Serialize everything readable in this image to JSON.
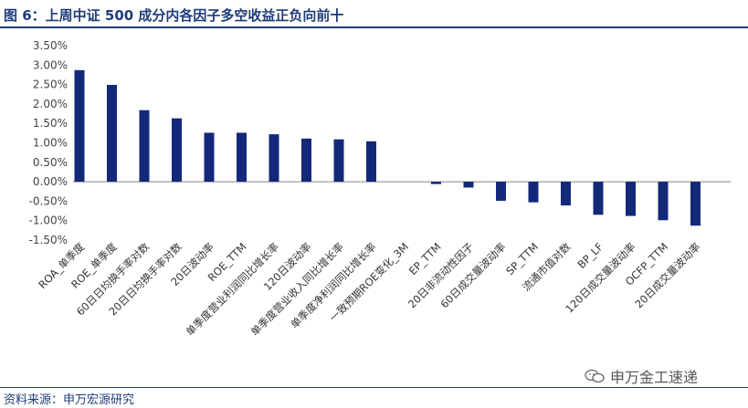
{
  "header": {
    "title": "图 6：上周中证 500 成分内各因子多空收益正负向前十"
  },
  "footer": {
    "source": "资料来源：申万宏源研究",
    "watermark": "申万金工速递"
  },
  "colors": {
    "bar": "#14287a",
    "title": "#1f3c7a",
    "axis": "#888888"
  },
  "chart_data": {
    "type": "bar",
    "categories": [
      "ROA_单季度",
      "ROE_单季度",
      "60日日均换手率对数",
      "20日日均换手率对数",
      "20日波动率",
      "ROE_TTM",
      "单季度营业利润同比增长率",
      "120日波动率",
      "单季度营业收入同比增长率",
      "单季度净利润同比增长率",
      "一致预期ROE变化_3M",
      "EP_TTM",
      "20日非流动性因子",
      "60日成交量波动率",
      "SP_TTM",
      "流通市值对数",
      "BP_LF",
      "120日成交量波动率",
      "OCFP_TTM",
      "20日成交量波动率"
    ],
    "values": [
      2.87,
      2.49,
      1.84,
      1.63,
      1.26,
      1.26,
      1.22,
      1.11,
      1.09,
      1.04,
      0.0,
      -0.06,
      -0.15,
      -0.49,
      -0.53,
      -0.61,
      -0.85,
      -0.88,
      -0.99,
      -1.13
    ],
    "yticks": [
      "3.50%",
      "3.00%",
      "2.50%",
      "2.00%",
      "1.50%",
      "1.00%",
      "0.50%",
      "0.00%",
      "-0.50%",
      "-1.00%",
      "-1.50%"
    ],
    "ylim": [
      -1.5,
      3.5
    ],
    "grid": false,
    "legend": "none"
  }
}
